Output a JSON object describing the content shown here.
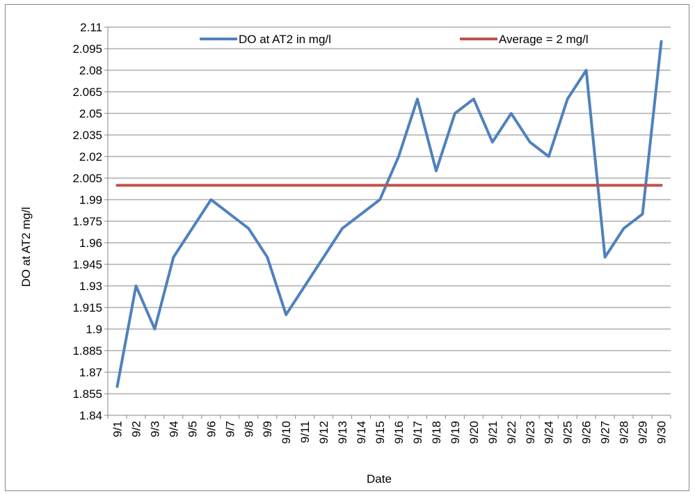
{
  "chart_data": {
    "type": "line",
    "title": "",
    "xlabel": "Date",
    "ylabel": "DO at AT2 mg/l",
    "x": [
      "9/1",
      "9/2",
      "9/3",
      "9/4",
      "9/5",
      "9/6",
      "9/7",
      "9/8",
      "9/9",
      "9/10",
      "9/11",
      "9/12",
      "9/13",
      "9/14",
      "9/15",
      "9/16",
      "9/17",
      "9/18",
      "9/19",
      "9/20",
      "9/21",
      "9/22",
      "9/23",
      "9/24",
      "9/25",
      "9/26",
      "9/27",
      "9/28",
      "9/29",
      "9/30"
    ],
    "ylim": [
      1.84,
      2.11
    ],
    "y_ticks": [
      "1.84",
      "1.855",
      "1.87",
      "1.885",
      "1.9",
      "1.915",
      "1.93",
      "1.945",
      "1.96",
      "1.975",
      "1.99",
      "2.005",
      "2.02",
      "2.035",
      "2.05",
      "2.065",
      "2.08",
      "2.095",
      "2.11"
    ],
    "grid": "horizontal",
    "legend_position": "top",
    "series": [
      {
        "name": "DO at AT2 in mg/l",
        "color": "#4F81BD",
        "values": [
          1.86,
          1.93,
          1.9,
          1.95,
          1.97,
          1.99,
          1.98,
          1.97,
          1.95,
          1.91,
          1.93,
          1.95,
          1.97,
          1.98,
          1.99,
          2.02,
          2.06,
          2.01,
          2.05,
          2.06,
          2.03,
          2.05,
          2.03,
          2.02,
          2.06,
          2.08,
          1.95,
          1.97,
          1.98,
          2.1
        ]
      },
      {
        "name": "Average = 2 mg/l",
        "color": "#C0504D",
        "values": [
          2,
          2,
          2,
          2,
          2,
          2,
          2,
          2,
          2,
          2,
          2,
          2,
          2,
          2,
          2,
          2,
          2,
          2,
          2,
          2,
          2,
          2,
          2,
          2,
          2,
          2,
          2,
          2,
          2,
          2
        ]
      }
    ]
  }
}
